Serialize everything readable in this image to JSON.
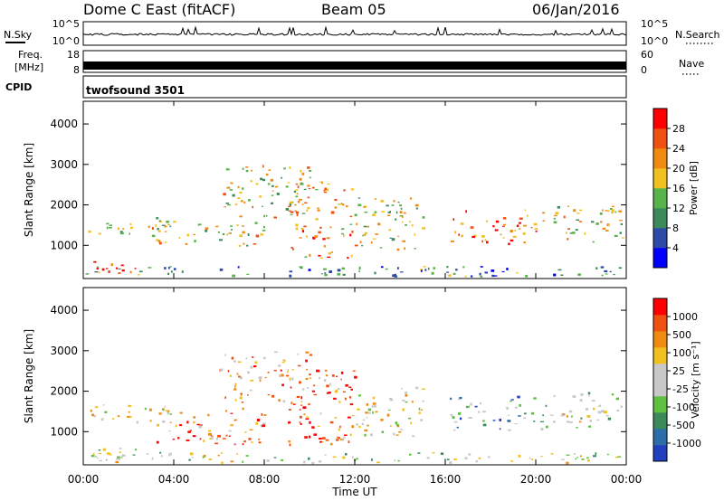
{
  "header": {
    "title": "Dome C East (fitACF)",
    "beam": "Beam 05",
    "date": "06/Jan/2016"
  },
  "noise_panel": {
    "left_label": "N.Sky",
    "left_ticks": [
      "10^5",
      "10^0"
    ],
    "right_ticks": [
      "10^5",
      "10^0"
    ],
    "right_label": "N.Search"
  },
  "freq_panel": {
    "left_label_top": "Freq.",
    "left_label_bottom": "[MHz]",
    "left_ticks": [
      "18",
      "8"
    ],
    "right_ticks": [
      "60",
      "0"
    ],
    "right_label": "Nave"
  },
  "cpid_panel": {
    "label": "CPID",
    "value": "twofsound 3501"
  },
  "colors": {
    "power_scale": [
      "#0000ff",
      "#2d4aa8",
      "#3c8a5a",
      "#58b34a",
      "#f0c020",
      "#f08a10",
      "#f05010",
      "#ff0000"
    ],
    "velocity_scale": [
      "#ff0000",
      "#f05010",
      "#f08a10",
      "#f0c020",
      "#c8c8c8",
      "#c8c8c8",
      "#60c040",
      "#3c8a5a",
      "#2d6ea8",
      "#2040c0"
    ]
  },
  "chart_data": [
    {
      "type": "heatmap",
      "panel": "power",
      "ylabel": "Slant Range [km]",
      "y_ticks": [
        "1000",
        "2000",
        "3000",
        "4000"
      ],
      "ylim": [
        180,
        4560
      ],
      "x_ticks": [
        "00:00",
        "04:00",
        "08:00",
        "12:00",
        "16:00",
        "20:00",
        "00:00"
      ],
      "xlim": [
        0,
        24
      ],
      "colorbar": {
        "label": "Power [dB]",
        "ticks": [
          "4",
          "8",
          "12",
          "16",
          "20",
          "24",
          "28"
        ],
        "range": [
          0,
          32
        ]
      },
      "echo_regions": [
        {
          "t0": 0.0,
          "t1": 2.6,
          "r0": 300,
          "r1": 650,
          "level": 0.85
        },
        {
          "t0": 0.2,
          "t1": 4.0,
          "r0": 1250,
          "r1": 1700,
          "level": 0.5
        },
        {
          "t0": 3.0,
          "t1": 8.0,
          "r0": 1000,
          "r1": 1600,
          "level": 0.6
        },
        {
          "t0": 6.0,
          "t1": 10.0,
          "r0": 1700,
          "r1": 3000,
          "level": 0.55
        },
        {
          "t0": 9.0,
          "t1": 12.0,
          "r0": 700,
          "r1": 2600,
          "level": 0.7
        },
        {
          "t0": 12.0,
          "t1": 15.0,
          "r0": 900,
          "r1": 2200,
          "level": 0.5
        },
        {
          "t0": 16.2,
          "t1": 20.5,
          "r0": 1050,
          "r1": 1900,
          "level": 0.75
        },
        {
          "t0": 20.5,
          "t1": 23.8,
          "r0": 1100,
          "r1": 2000,
          "level": 0.55
        },
        {
          "t0": 0.0,
          "t1": 23.9,
          "r0": 250,
          "r1": 500,
          "level": 0.3
        }
      ]
    },
    {
      "type": "heatmap",
      "panel": "velocity",
      "ylabel": "Slant Range [km]",
      "y_ticks": [
        "1000",
        "2000",
        "3000",
        "4000"
      ],
      "ylim": [
        180,
        4560
      ],
      "x_ticks": [
        "00:00",
        "04:00",
        "08:00",
        "12:00",
        "16:00",
        "20:00",
        "00:00"
      ],
      "xlim": [
        0,
        24
      ],
      "xlabel": "Time UT",
      "colorbar": {
        "label": "Velocity [m s⁻¹]",
        "ticks": [
          "1000",
          "500",
          "100",
          "25",
          "-25",
          "-100",
          "-500",
          "-1000"
        ],
        "range": [
          -1000,
          1000
        ]
      },
      "echo_regions": [
        {
          "t0": 0.0,
          "t1": 2.6,
          "r0": 300,
          "r1": 650,
          "level": 0.55
        },
        {
          "t0": 0.2,
          "t1": 4.0,
          "r0": 1250,
          "r1": 1700,
          "level": 0.45
        },
        {
          "t0": 3.0,
          "t1": 8.0,
          "r0": 700,
          "r1": 1600,
          "level": 0.25
        },
        {
          "t0": 6.0,
          "t1": 10.0,
          "r0": 1700,
          "r1": 3000,
          "level": 0.3
        },
        {
          "t0": 9.0,
          "t1": 12.0,
          "r0": 700,
          "r1": 2600,
          "level": 0.2
        },
        {
          "t0": 12.0,
          "t1": 15.0,
          "r0": 900,
          "r1": 2200,
          "level": 0.45
        },
        {
          "t0": 16.2,
          "t1": 20.5,
          "r0": 1050,
          "r1": 1900,
          "level": 0.7
        },
        {
          "t0": 20.5,
          "t1": 23.8,
          "r0": 1100,
          "r1": 2000,
          "level": 0.5
        },
        {
          "t0": 0.0,
          "t1": 23.9,
          "r0": 250,
          "r1": 500,
          "level": 0.5
        }
      ]
    }
  ]
}
